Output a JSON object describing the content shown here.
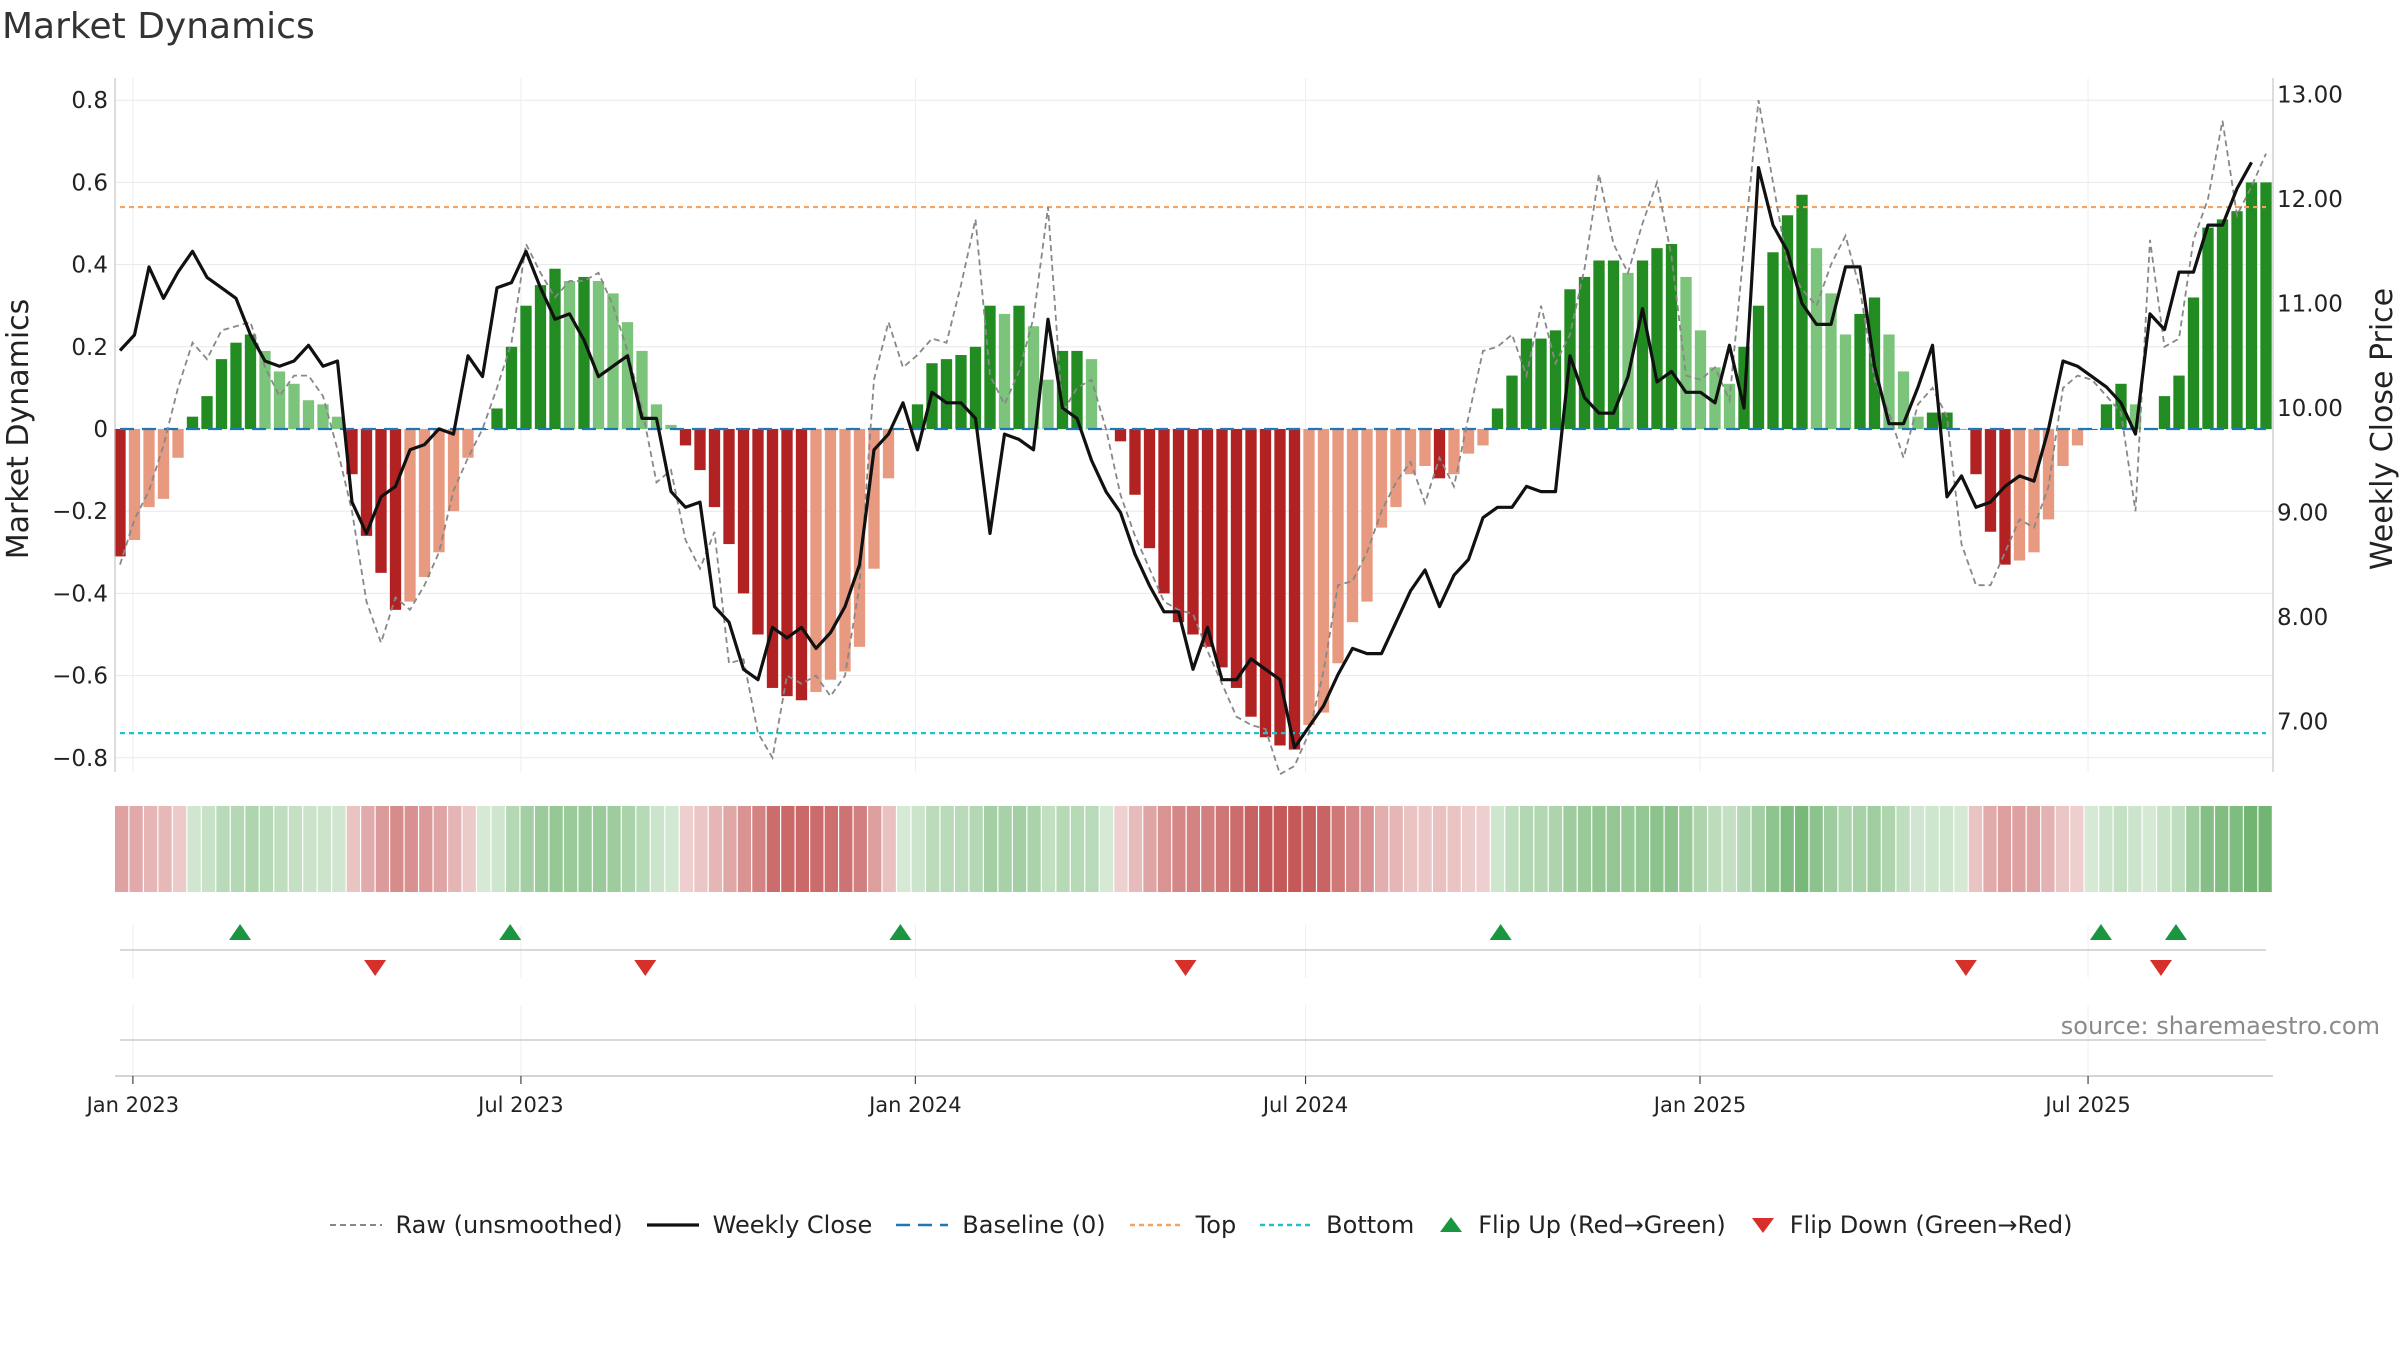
{
  "title": "Market Dynamics",
  "source": "source: sharemaestro.com",
  "colors": {
    "strong_green": "#228b22",
    "light_green": "#7cc47c",
    "strong_red": "#b22222",
    "light_red": "#e89a80",
    "weekly_close": "#111111",
    "raw": "#888888",
    "baseline": "#1f77b4",
    "top": "#f4a460",
    "bottom": "#20c0d0",
    "flip_up": "#1a9641",
    "flip_down": "#d7302a"
  },
  "legend": [
    {
      "key": "raw",
      "label": "Raw (unsmoothed)"
    },
    {
      "key": "weekly",
      "label": "Weekly Close"
    },
    {
      "key": "baseline",
      "label": "Baseline (0)"
    },
    {
      "key": "top",
      "label": "Top"
    },
    {
      "key": "bottom",
      "label": "Bottom"
    },
    {
      "key": "flip_up",
      "label": "Flip Up (Red→Green)"
    },
    {
      "key": "flip_down",
      "label": "Flip Down (Green→Red)"
    }
  ],
  "chart_data": {
    "type": "bar",
    "x_axis": {
      "ticks": [
        "Jan 2023",
        "Jul 2023",
        "Jan 2024",
        "Jul 2024",
        "Jan 2025",
        "Jul 2025"
      ],
      "start": "2022-12-26",
      "end": "2025-09-22",
      "grid": true
    },
    "y_left": {
      "label": "Market Dynamics",
      "range": [
        -0.85,
        0.85
      ],
      "ticks": [
        "0.8",
        "0.6",
        "0.4",
        "0.2",
        "0",
        "−0.2",
        "−0.4",
        "−0.6",
        "−0.8"
      ]
    },
    "y_right": {
      "label": "Weekly Close Price",
      "range": [
        6.5,
        13.0
      ],
      "ticks": [
        "13.00",
        "12.00",
        "11.00",
        "10.00",
        "9.00",
        "8.00",
        "7.00"
      ]
    },
    "reference_lines": {
      "baseline": 0,
      "top": 0.54,
      "bottom": -0.74
    },
    "market_dynamics": [
      -0.31,
      -0.27,
      -0.19,
      -0.17,
      -0.07,
      0.03,
      0.08,
      0.17,
      0.21,
      0.23,
      0.19,
      0.14,
      0.11,
      0.07,
      0.06,
      0.03,
      -0.11,
      -0.26,
      -0.35,
      -0.44,
      -0.42,
      -0.36,
      -0.3,
      -0.2,
      -0.07,
      0.0,
      0.05,
      0.2,
      0.3,
      0.35,
      0.39,
      0.36,
      0.37,
      0.36,
      0.33,
      0.26,
      0.19,
      0.06,
      0.01,
      -0.04,
      -0.1,
      -0.19,
      -0.28,
      -0.4,
      -0.5,
      -0.63,
      -0.65,
      -0.66,
      -0.64,
      -0.61,
      -0.59,
      -0.53,
      -0.34,
      -0.12,
      0.0,
      0.06,
      0.16,
      0.17,
      0.18,
      0.2,
      0.3,
      0.28,
      0.3,
      0.25,
      0.12,
      0.19,
      0.19,
      0.17,
      0.0,
      -0.03,
      -0.16,
      -0.29,
      -0.4,
      -0.47,
      -0.5,
      -0.53,
      -0.58,
      -0.63,
      -0.7,
      -0.75,
      -0.77,
      -0.78,
      -0.72,
      -0.69,
      -0.57,
      -0.47,
      -0.42,
      -0.24,
      -0.19,
      -0.11,
      -0.09,
      -0.12,
      -0.11,
      -0.06,
      -0.04,
      0.05,
      0.13,
      0.22,
      0.22,
      0.24,
      0.34,
      0.37,
      0.41,
      0.41,
      0.38,
      0.41,
      0.44,
      0.45,
      0.37,
      0.24,
      0.15,
      0.11,
      0.2,
      0.3,
      0.43,
      0.52,
      0.57,
      0.44,
      0.33,
      0.23,
      0.28,
      0.32,
      0.23,
      0.14,
      0.03,
      0.04,
      0.04,
      0.0,
      -0.11,
      -0.25,
      -0.33,
      -0.32,
      -0.3,
      -0.22,
      -0.09,
      -0.04,
      0.0,
      0.06,
      0.11,
      0.06,
      0.0,
      0.08,
      0.13,
      0.32,
      0.49,
      0.51,
      0.53,
      0.6,
      0.6
    ],
    "raw": [
      -0.33,
      -0.22,
      -0.15,
      -0.04,
      0.1,
      0.21,
      0.17,
      0.24,
      0.25,
      0.26,
      0.15,
      0.08,
      0.13,
      0.13,
      0.08,
      -0.05,
      -0.2,
      -0.42,
      -0.52,
      -0.41,
      -0.44,
      -0.38,
      -0.3,
      -0.15,
      -0.07,
      0.0,
      0.1,
      0.21,
      0.45,
      0.38,
      0.32,
      0.36,
      0.36,
      0.38,
      0.3,
      0.19,
      0.05,
      -0.13,
      -0.1,
      -0.27,
      -0.34,
      -0.25,
      -0.57,
      -0.56,
      -0.74,
      -0.8,
      -0.6,
      -0.62,
      -0.6,
      -0.65,
      -0.6,
      -0.38,
      0.12,
      0.26,
      0.15,
      0.18,
      0.22,
      0.21,
      0.35,
      0.51,
      0.13,
      0.06,
      0.14,
      0.27,
      0.54,
      0.04,
      0.1,
      0.12,
      0.0,
      -0.16,
      -0.26,
      -0.34,
      -0.42,
      -0.44,
      -0.45,
      -0.54,
      -0.62,
      -0.7,
      -0.72,
      -0.73,
      -0.84,
      -0.82,
      -0.74,
      -0.59,
      -0.38,
      -0.37,
      -0.3,
      -0.2,
      -0.13,
      -0.08,
      -0.18,
      -0.07,
      -0.14,
      0.03,
      0.19,
      0.2,
      0.23,
      0.13,
      0.3,
      0.16,
      0.23,
      0.39,
      0.62,
      0.45,
      0.38,
      0.5,
      0.6,
      0.42,
      0.13,
      0.12,
      0.15,
      0.07,
      0.44,
      0.8,
      0.6,
      0.4,
      0.34,
      0.3,
      0.4,
      0.47,
      0.34,
      0.12,
      0.04,
      -0.07,
      0.06,
      0.1,
      0.03,
      -0.28,
      -0.38,
      -0.38,
      -0.3,
      -0.22,
      -0.24,
      -0.14,
      0.1,
      0.13,
      0.12,
      0.08,
      0.04,
      -0.2,
      0.46,
      0.2,
      0.22,
      0.46,
      0.56,
      0.75,
      0.52,
      0.59,
      0.67
    ],
    "weekly_close": [
      10.55,
      10.7,
      11.35,
      11.05,
      11.3,
      11.5,
      11.25,
      11.15,
      11.05,
      10.7,
      10.45,
      10.4,
      10.45,
      10.6,
      10.4,
      10.45,
      9.1,
      8.8,
      9.15,
      9.25,
      9.6,
      9.65,
      9.8,
      9.75,
      10.5,
      10.3,
      11.15,
      11.2,
      11.5,
      11.15,
      10.85,
      10.9,
      10.65,
      10.3,
      10.4,
      10.5,
      9.9,
      9.9,
      9.2,
      9.05,
      9.1,
      8.1,
      7.95,
      7.5,
      7.4,
      7.9,
      7.8,
      7.9,
      7.7,
      7.85,
      8.1,
      8.5,
      9.6,
      9.75,
      10.05,
      9.6,
      10.15,
      10.05,
      10.05,
      9.9,
      8.8,
      9.75,
      9.7,
      9.6,
      10.85,
      10.0,
      9.9,
      9.5,
      9.2,
      9.0,
      8.6,
      8.3,
      8.05,
      8.05,
      7.5,
      7.9,
      7.4,
      7.4,
      7.6,
      7.5,
      7.4,
      6.75,
      6.95,
      7.15,
      7.45,
      7.7,
      7.65,
      7.65,
      7.95,
      8.25,
      8.45,
      8.1,
      8.4,
      8.55,
      8.95,
      9.05,
      9.05,
      9.25,
      9.2,
      9.2,
      10.5,
      10.1,
      9.95,
      9.95,
      10.3,
      10.95,
      10.25,
      10.35,
      10.15,
      10.15,
      10.05,
      10.6,
      10.0,
      12.3,
      11.75,
      11.5,
      11.0,
      10.8,
      10.8,
      11.35,
      11.35,
      10.4,
      9.85,
      9.85,
      10.2,
      10.6,
      9.15,
      9.35,
      9.05,
      9.1,
      9.25,
      9.35,
      9.3,
      9.8,
      10.45,
      10.4,
      10.3,
      10.2,
      10.05,
      9.75,
      10.9,
      10.75,
      11.3,
      11.3,
      11.75,
      11.75,
      12.1,
      12.35
    ],
    "flip_up": [
      "2023-02-20",
      "2023-06-26",
      "2023-12-25",
      "2024-09-30",
      "2025-07-07",
      "2025-08-11"
    ],
    "flip_down": [
      "2023-04-24",
      "2023-08-28",
      "2024-05-06",
      "2025-05-05",
      "2025-08-04"
    ]
  }
}
